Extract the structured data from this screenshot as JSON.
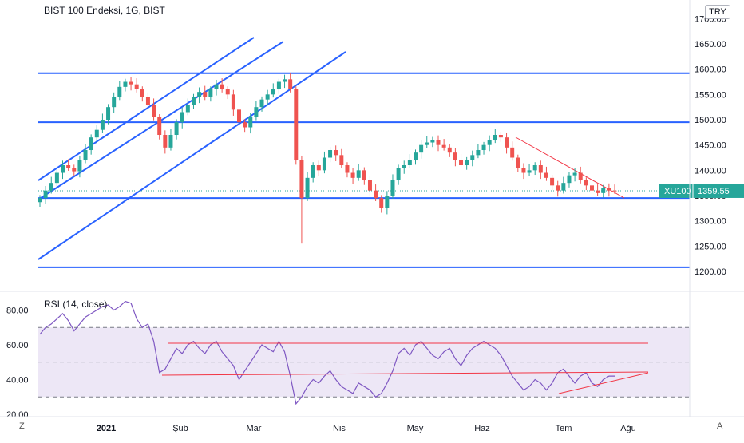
{
  "header": {
    "title": "BIST 100 Endeksi, 1G, BIST",
    "currency": "TRY"
  },
  "price_label": {
    "symbol": "XU100",
    "value": "1359.55",
    "color": "#26a69a"
  },
  "corner_buttons": {
    "left": "Z",
    "right": "A"
  },
  "colors": {
    "up": "#26a69a",
    "down": "#ef5350",
    "trendline_blue": "#2962ff",
    "trendline_red": "#f23645",
    "rsi_line": "#7e57c2",
    "rsi_band": "#ede7f6"
  },
  "chart_data": [
    {
      "type": "candlestick",
      "title": "BIST 100 Endeksi, 1G, BIST",
      "y_ticks": [
        "1200.00",
        "1250.00",
        "1300.00",
        "1350.00",
        "1400.00",
        "1450.00",
        "1500.00",
        "1550.00",
        "1600.00",
        "1650.00",
        "1700.00"
      ],
      "ylim": [
        1190,
        1710
      ],
      "x_ticks": [
        "2021",
        "Şub",
        "Mar",
        "Nis",
        "May",
        "Haz",
        "Tem",
        "Ağu"
      ],
      "horizontal_levels": [
        1592,
        1495,
        1345,
        1208
      ],
      "last_value": 1359.55,
      "close_series": [
        1345,
        1360,
        1375,
        1395,
        1410,
        1405,
        1398,
        1420,
        1440,
        1465,
        1480,
        1500,
        1525,
        1545,
        1565,
        1575,
        1570,
        1560,
        1545,
        1530,
        1505,
        1470,
        1445,
        1470,
        1495,
        1515,
        1530,
        1545,
        1555,
        1545,
        1560,
        1570,
        1560,
        1550,
        1520,
        1495,
        1485,
        1505,
        1525,
        1540,
        1550,
        1560,
        1575,
        1580,
        1560,
        1420,
        1345,
        1385,
        1410,
        1400,
        1425,
        1440,
        1430,
        1410,
        1395,
        1385,
        1400,
        1380,
        1360,
        1345,
        1325,
        1350,
        1380,
        1405,
        1410,
        1420,
        1435,
        1450,
        1455,
        1460,
        1450,
        1445,
        1435,
        1420,
        1410,
        1420,
        1430,
        1440,
        1450,
        1460,
        1470,
        1465,
        1445,
        1425,
        1405,
        1395,
        1400,
        1410,
        1395,
        1385,
        1370,
        1360,
        1375,
        1390,
        1395,
        1380,
        1370,
        1360,
        1355,
        1365,
        1360,
        1359.55
      ]
    },
    {
      "type": "line",
      "title": "RSI (14, close)",
      "y_ticks": [
        "20.00",
        "40.00",
        "60.00",
        "80.00"
      ],
      "ylim": [
        18,
        90
      ],
      "upper_band": 70,
      "middle_band": 50,
      "lower_band": 30,
      "values": [
        66,
        70,
        72,
        75,
        78,
        74,
        68,
        72,
        76,
        78,
        80,
        82,
        83,
        80,
        82,
        85,
        84,
        75,
        70,
        72,
        62,
        44,
        46,
        52,
        58,
        55,
        60,
        62,
        58,
        55,
        60,
        62,
        56,
        52,
        48,
        40,
        45,
        50,
        55,
        60,
        58,
        56,
        62,
        56,
        42,
        26,
        30,
        36,
        40,
        38,
        42,
        45,
        40,
        36,
        34,
        32,
        38,
        36,
        34,
        30,
        32,
        38,
        45,
        55,
        58,
        54,
        60,
        62,
        58,
        54,
        52,
        56,
        58,
        52,
        48,
        54,
        58,
        60,
        62,
        60,
        58,
        54,
        48,
        42,
        38,
        34,
        36,
        40,
        38,
        34,
        38,
        44,
        46,
        42,
        38,
        42,
        44,
        38,
        36,
        40,
        42,
        42
      ]
    }
  ]
}
